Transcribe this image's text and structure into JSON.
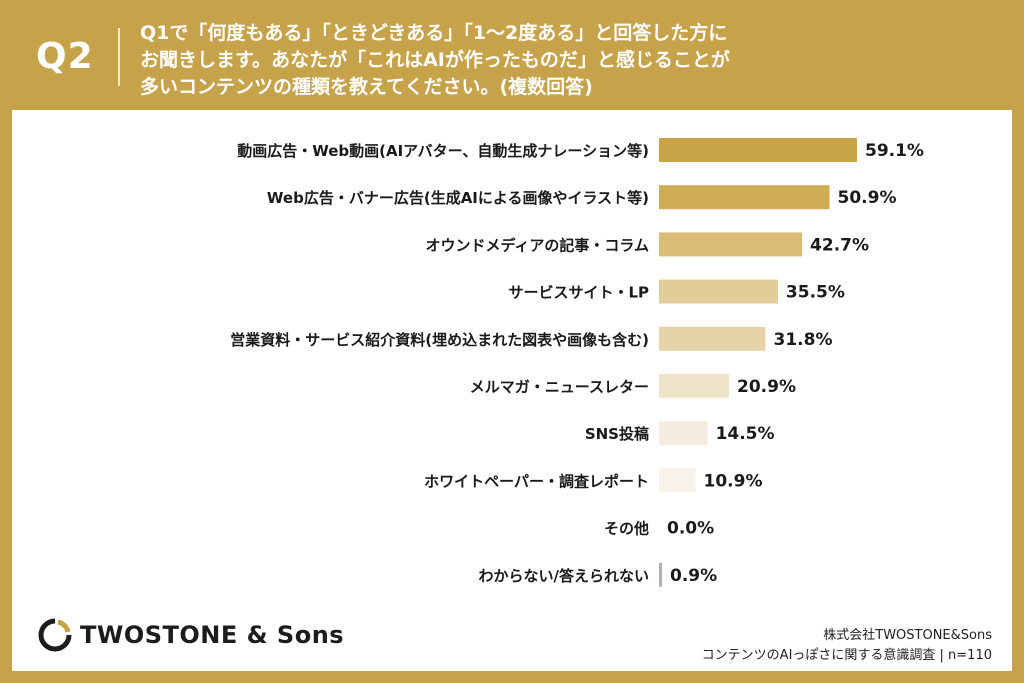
{
  "header": {
    "q_label": "Q2",
    "question_lines": [
      "Q1で「何度もある」「ときどきある」「1〜2度ある」と回答した方に",
      "お聞きします。あなたが「これはAIが作ったものだ」と感じることが",
      "多いコンテンツの種類を教えてください。(複数回答)"
    ]
  },
  "chart_data": {
    "type": "bar",
    "orientation": "horizontal",
    "categories": [
      "動画広告・Web動画(AIアバター、自動生成ナレーション等)",
      "Web広告・バナー広告(生成AIによる画像やイラスト等)",
      "オウンドメディアの記事・コラム",
      "サービスサイト・LP",
      "営業資料・サービス紹介資料(埋め込まれた図表や画像も含む)",
      "メルマガ・ニュースレター",
      "SNS投稿",
      "ホワイトペーパー・調査レポート",
      "その他",
      "わからない/答えられない"
    ],
    "values": [
      59.1,
      50.9,
      42.7,
      35.5,
      31.8,
      20.9,
      14.5,
      10.9,
      0.0,
      0.9
    ],
    "value_labels": [
      "59.1%",
      "50.9%",
      "42.7%",
      "35.5%",
      "31.8%",
      "20.9%",
      "14.5%",
      "10.9%",
      "0.0%",
      "0.9%"
    ],
    "bar_colors": [
      "#c9a446",
      "#cfac56",
      "#d8bc78",
      "#e2cc9a",
      "#e6d4a8",
      "#efe3c8",
      "#f5eee0",
      "#f8f3ea",
      "#ffffff",
      "#b3b3b3"
    ],
    "xlim": [
      0,
      100
    ],
    "grid": false
  },
  "footer": {
    "logo_text": "TWOSTONE & Sons",
    "company": "株式会社TWOSTONE&Sons",
    "survey": "コンテンツのAIっぽさに関する意識調査 | n=110"
  }
}
